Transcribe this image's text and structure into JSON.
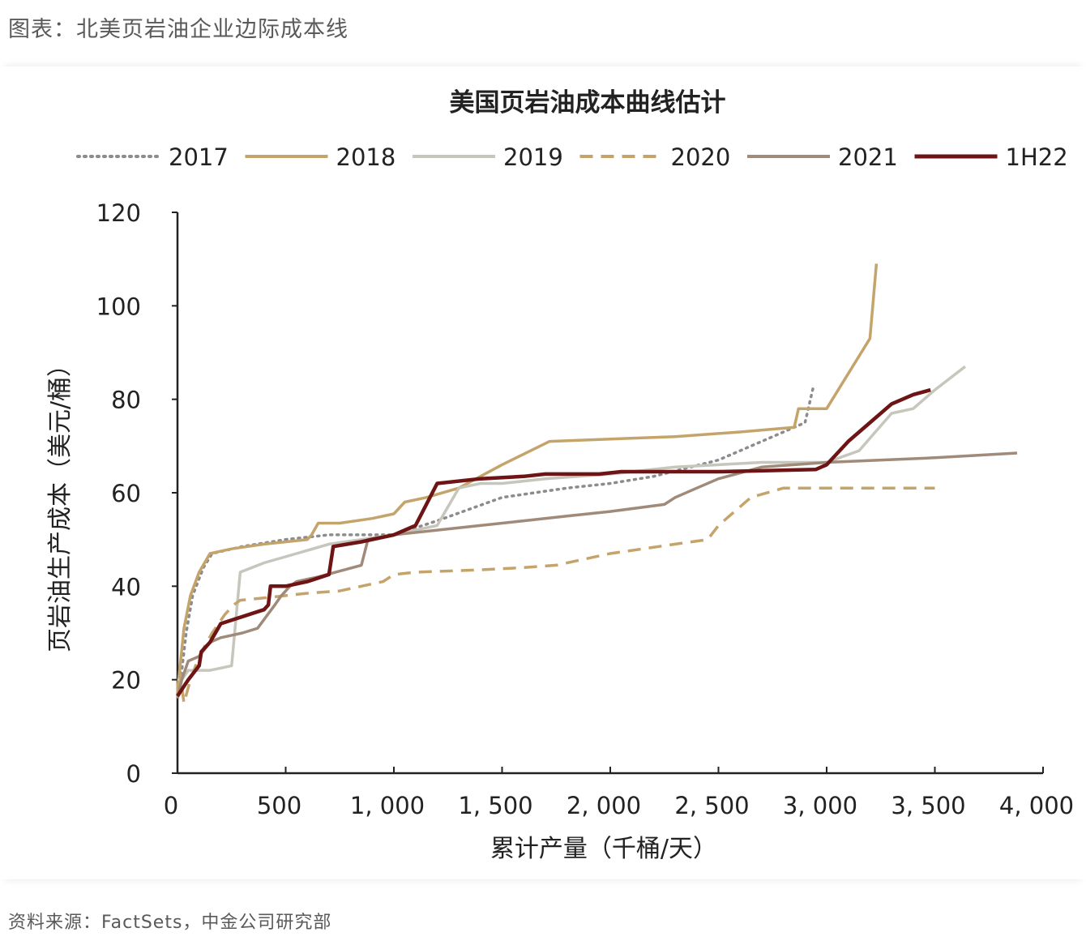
{
  "caption": "图表：北美页岩油企业边际成本线",
  "source": "资料来源：FactSets，中金公司研究部",
  "chart_data": {
    "type": "line",
    "title": "美国页岩油成本曲线估计",
    "xlabel": "累计产量（千桶/天）",
    "ylabel": "页岩油生产成本（美元/桶）",
    "xlim": [
      0,
      4000
    ],
    "ylim": [
      0,
      120
    ],
    "x_ticks": [
      0,
      500,
      1000,
      1500,
      2000,
      2500,
      3000,
      3500,
      4000
    ],
    "x_tick_labels": [
      "0",
      "500",
      "1, 000",
      "1, 500",
      "2, 000",
      "2, 500",
      "3, 000",
      "3, 500",
      "4, 000"
    ],
    "y_ticks": [
      0,
      20,
      40,
      60,
      80,
      100,
      120
    ],
    "y_tick_labels": [
      "0",
      "20",
      "40",
      "60",
      "80",
      "100",
      "120"
    ],
    "legend_position": "top",
    "grid": false,
    "series": [
      {
        "name": "2017",
        "color": "#8c8c8c",
        "style": "dotted",
        "points": [
          [
            0,
            17
          ],
          [
            20,
            22
          ],
          [
            40,
            30
          ],
          [
            70,
            38
          ],
          [
            120,
            44
          ],
          [
            160,
            47
          ],
          [
            300,
            48.5
          ],
          [
            500,
            50
          ],
          [
            700,
            51
          ],
          [
            1000,
            51
          ],
          [
            1200,
            54
          ],
          [
            1500,
            59
          ],
          [
            1800,
            61
          ],
          [
            2000,
            62
          ],
          [
            2200,
            63.5
          ],
          [
            2500,
            67
          ],
          [
            2700,
            71
          ],
          [
            2900,
            75
          ],
          [
            2940,
            83
          ]
        ]
      },
      {
        "name": "2018",
        "color": "#c4a46a",
        "style": "solid",
        "points": [
          [
            0,
            18
          ],
          [
            10,
            22
          ],
          [
            30,
            31
          ],
          [
            60,
            38
          ],
          [
            100,
            43
          ],
          [
            150,
            47
          ],
          [
            250,
            48
          ],
          [
            400,
            49
          ],
          [
            600,
            50
          ],
          [
            620,
            51
          ],
          [
            650,
            53.5
          ],
          [
            750,
            53.5
          ],
          [
            900,
            54.5
          ],
          [
            1000,
            55.5
          ],
          [
            1050,
            58
          ],
          [
            1150,
            59
          ],
          [
            1300,
            61
          ],
          [
            1500,
            66
          ],
          [
            1720,
            71
          ],
          [
            2000,
            71.5
          ],
          [
            2300,
            72
          ],
          [
            2600,
            73
          ],
          [
            2850,
            74
          ],
          [
            2870,
            78
          ],
          [
            3000,
            78
          ],
          [
            3200,
            93
          ],
          [
            3230,
            109
          ]
        ]
      },
      {
        "name": "2019",
        "color": "#c6c6bc",
        "style": "solid",
        "points": [
          [
            0,
            20
          ],
          [
            20,
            20
          ],
          [
            50,
            22
          ],
          [
            150,
            22
          ],
          [
            200,
            22.5
          ],
          [
            250,
            23
          ],
          [
            290,
            43
          ],
          [
            400,
            45
          ],
          [
            550,
            47
          ],
          [
            700,
            49
          ],
          [
            850,
            50
          ],
          [
            1000,
            51
          ],
          [
            1100,
            52
          ],
          [
            1200,
            53
          ],
          [
            1300,
            61
          ],
          [
            1400,
            62
          ],
          [
            1500,
            62
          ],
          [
            1700,
            63
          ],
          [
            2000,
            64
          ],
          [
            2300,
            65.5
          ],
          [
            2700,
            66.5
          ],
          [
            3000,
            66.5
          ],
          [
            3150,
            69
          ],
          [
            3300,
            77
          ],
          [
            3400,
            78
          ],
          [
            3500,
            82
          ],
          [
            3640,
            87
          ]
        ]
      },
      {
        "name": "2020",
        "color": "#c4a46a",
        "style": "dashed",
        "points": [
          [
            0,
            17
          ],
          [
            10,
            22
          ],
          [
            30,
            15
          ],
          [
            60,
            20
          ],
          [
            100,
            25
          ],
          [
            160,
            30
          ],
          [
            220,
            34
          ],
          [
            260,
            36
          ],
          [
            290,
            37
          ],
          [
            400,
            37.5
          ],
          [
            500,
            38
          ],
          [
            600,
            38.5
          ],
          [
            750,
            39
          ],
          [
            850,
            40
          ],
          [
            950,
            41
          ],
          [
            1000,
            42.5
          ],
          [
            1100,
            43
          ],
          [
            1400,
            43.5
          ],
          [
            1600,
            44
          ],
          [
            1750,
            44.5
          ],
          [
            2000,
            47
          ],
          [
            2300,
            49
          ],
          [
            2450,
            50
          ],
          [
            2500,
            53
          ],
          [
            2550,
            55
          ],
          [
            2650,
            59
          ],
          [
            2800,
            61
          ],
          [
            3000,
            61
          ],
          [
            3500,
            61
          ]
        ]
      },
      {
        "name": "2021",
        "color": "#a08a7a",
        "style": "solid",
        "points": [
          [
            0,
            16
          ],
          [
            20,
            20
          ],
          [
            50,
            24
          ],
          [
            100,
            25
          ],
          [
            150,
            28
          ],
          [
            200,
            29
          ],
          [
            300,
            30
          ],
          [
            370,
            31
          ],
          [
            450,
            36
          ],
          [
            480,
            38
          ],
          [
            520,
            40
          ],
          [
            550,
            41
          ],
          [
            650,
            42
          ],
          [
            850,
            44.5
          ],
          [
            880,
            50
          ],
          [
            1000,
            51
          ],
          [
            1200,
            52
          ],
          [
            1400,
            53
          ],
          [
            1600,
            54
          ],
          [
            1800,
            55
          ],
          [
            2000,
            56
          ],
          [
            2250,
            57.5
          ],
          [
            2300,
            59
          ],
          [
            2400,
            61
          ],
          [
            2500,
            63
          ],
          [
            2700,
            65.5
          ],
          [
            3000,
            66.5
          ],
          [
            3500,
            67.5
          ],
          [
            3880,
            68.5
          ]
        ]
      },
      {
        "name": "1H22",
        "color": "#6e1414",
        "style": "solid",
        "points": [
          [
            0,
            16.5
          ],
          [
            50,
            20
          ],
          [
            100,
            23
          ],
          [
            110,
            26
          ],
          [
            150,
            28
          ],
          [
            200,
            32
          ],
          [
            400,
            35
          ],
          [
            420,
            36
          ],
          [
            430,
            40
          ],
          [
            500,
            40
          ],
          [
            600,
            41
          ],
          [
            700,
            42.5
          ],
          [
            720,
            48.5
          ],
          [
            850,
            49.5
          ],
          [
            1000,
            51
          ],
          [
            1100,
            53
          ],
          [
            1200,
            62
          ],
          [
            1400,
            63
          ],
          [
            1600,
            63.5
          ],
          [
            1700,
            64
          ],
          [
            1950,
            64
          ],
          [
            2050,
            64.5
          ],
          [
            2500,
            64.5
          ],
          [
            2950,
            65
          ],
          [
            3000,
            66
          ],
          [
            3100,
            71
          ],
          [
            3200,
            75
          ],
          [
            3300,
            79
          ],
          [
            3400,
            81
          ],
          [
            3480,
            82
          ]
        ]
      }
    ]
  }
}
